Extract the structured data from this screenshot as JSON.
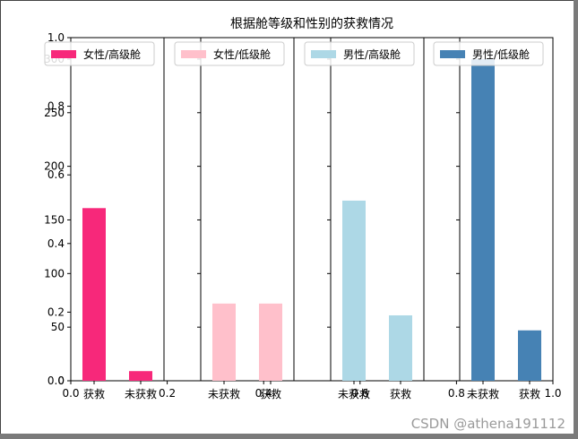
{
  "watermark": "CSDN @athena191112",
  "chart_data": {
    "type": "bar",
    "title": "根据舱等级和性别的获救情况",
    "outer_axes": {
      "x_ticks": [
        "0.0",
        "0.2",
        "0.4",
        "0.6",
        "0.8",
        "1.0"
      ],
      "y_ticks": [
        "0.0",
        "0.2",
        "0.4",
        "0.6",
        "0.8",
        "1.0"
      ]
    },
    "shared_y_ticks": [
      "0",
      "50",
      "100",
      "150",
      "200",
      "250",
      "300"
    ],
    "ylim": [
      0,
      320
    ],
    "subplots": [
      {
        "series_name": "女性/高级舱",
        "color": "#f7287a",
        "categories": [
          "获救",
          "未获救"
        ],
        "values": [
          161,
          9
        ]
      },
      {
        "series_name": "女性/低级舱",
        "color": "#ffc0cb",
        "categories": [
          "未获救",
          "获救"
        ],
        "values": [
          72,
          72
        ]
      },
      {
        "series_name": "男性/高级舱",
        "color": "#add8e6",
        "categories": [
          "未获救",
          "获救"
        ],
        "values": [
          168,
          61
        ]
      },
      {
        "series_name": "男性/低级舱",
        "color": "#4682b4",
        "categories": [
          "未获救",
          "获救"
        ],
        "values": [
          300,
          47
        ]
      }
    ]
  }
}
